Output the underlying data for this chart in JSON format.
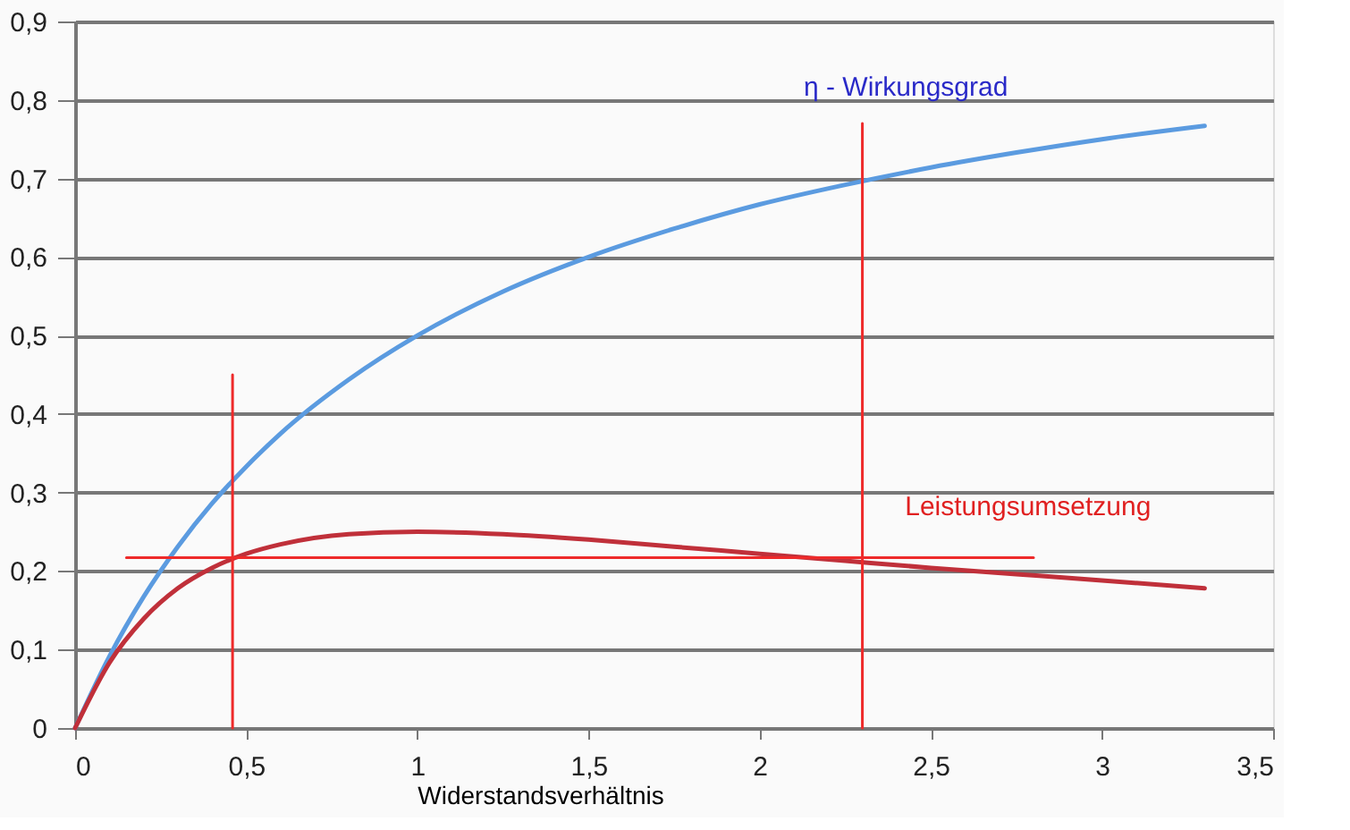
{
  "chart_data": {
    "type": "line",
    "xlabel": "Widerstandsverhältnis",
    "xlim": [
      0,
      3.5
    ],
    "xticks": [
      0,
      {
        "value": 0.5,
        "label": "0,5"
      },
      1,
      {
        "value": 1.5,
        "label": "1,5"
      },
      2,
      {
        "value": 2.5,
        "label": "2,5"
      },
      3,
      {
        "value": 3.5,
        "label": "3,5"
      }
    ],
    "ylim": [
      0,
      0.9
    ],
    "yticks": [
      0,
      {
        "value": 0.1,
        "label": "0,1"
      },
      {
        "value": 0.2,
        "label": "0,2"
      },
      {
        "value": 0.3,
        "label": "0,3"
      },
      {
        "value": 0.4,
        "label": "0,4"
      },
      {
        "value": 0.5,
        "label": "0,5"
      },
      {
        "value": 0.6,
        "label": "0,6"
      },
      {
        "value": 0.7,
        "label": "0,7"
      },
      {
        "value": 0.8,
        "label": "0,8"
      },
      {
        "value": 0.9,
        "label": "0,9"
      }
    ],
    "grid": "y",
    "x": [
      0,
      0.1,
      0.2,
      0.3,
      0.4,
      0.5,
      0.6,
      0.8,
      1,
      1.25,
      1.5,
      1.75,
      2,
      2.25,
      2.5,
      2.75,
      3,
      3.3
    ],
    "series": [
      {
        "name": "η - Wirkungsgrad",
        "color": "#5b9be0",
        "values": [
          0,
          0.091,
          0.167,
          0.231,
          0.286,
          0.333,
          0.375,
          0.444,
          0.5,
          0.556,
          0.6,
          0.636,
          0.667,
          0.692,
          0.714,
          0.733,
          0.75,
          0.767
        ]
      },
      {
        "name": "Leistungsumsetzung",
        "color": "#c0303a",
        "values": [
          0,
          0.083,
          0.139,
          0.178,
          0.204,
          0.222,
          0.234,
          0.247,
          0.25,
          0.247,
          0.24,
          0.231,
          0.222,
          0.213,
          0.204,
          0.196,
          0.188,
          0.178
        ]
      },
      {
        "type": "line",
        "color": "#ee2a2a",
        "x": [
          0.15,
          2.8
        ],
        "values": [
          0.217,
          0.217
        ]
      },
      {
        "type": "line",
        "color": "#ee2a2a",
        "x": [
          0.46,
          0.46
        ],
        "values": [
          0,
          0.45
        ]
      },
      {
        "type": "line",
        "color": "#ee2a2a",
        "x": [
          2.3,
          2.3
        ],
        "values": [
          0,
          0.77
        ]
      }
    ]
  }
}
